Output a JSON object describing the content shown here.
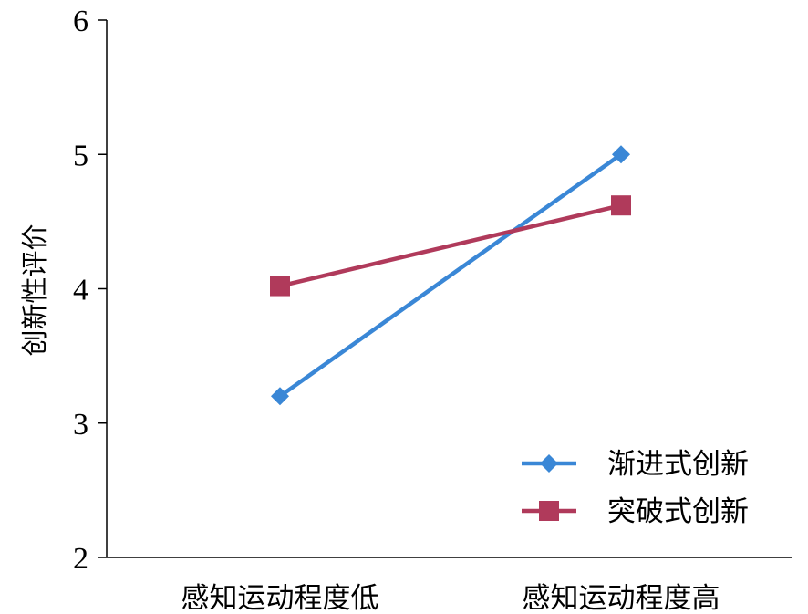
{
  "chart_data": {
    "type": "line",
    "categories": [
      "感知运动程度低",
      "感知运动程度高"
    ],
    "series": [
      {
        "name": "渐进式创新",
        "values": [
          3.2,
          5.0
        ],
        "color": "#3a87d6",
        "marker": "diamond"
      },
      {
        "name": "突破式创新",
        "values": [
          4.02,
          4.62
        ],
        "color": "#b03a5b",
        "marker": "square"
      }
    ],
    "ylabel": "创新性评价",
    "ylim": [
      2,
      6
    ],
    "yticks": [
      "2",
      "3",
      "4",
      "5",
      "6"
    ],
    "grid": false,
    "legend_position": "bottom-right"
  }
}
